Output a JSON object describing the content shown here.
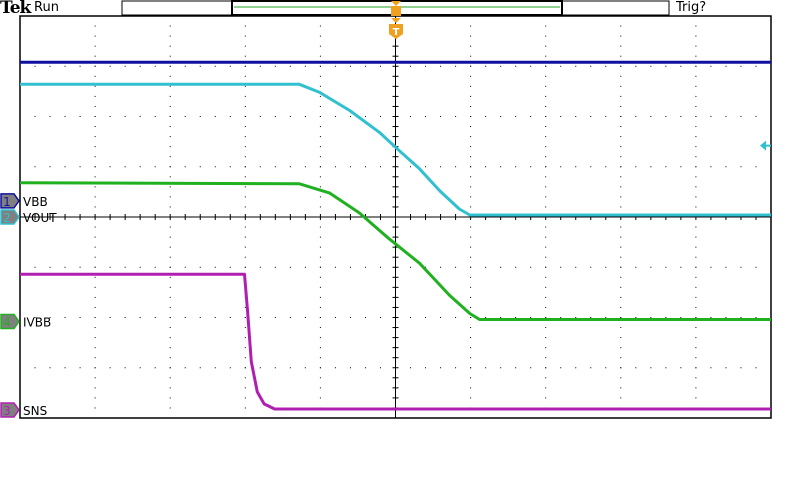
{
  "header": {
    "brand": "Tek",
    "status": "Run",
    "trigger_status": "Trig?"
  },
  "colors": {
    "ch1": "#1010a0",
    "ch2": "#30c0d0",
    "ch3": "#b020b0",
    "ch4": "#20b020",
    "trigger": "#f0a020",
    "grid": "#000000"
  },
  "chart_data": {
    "type": "line",
    "title": "",
    "xlabel": "",
    "ylabel": "",
    "xlim": [
      -5,
      5
    ],
    "ylim": [
      -4,
      4
    ],
    "units": "divisions",
    "grid": true,
    "x_divisions": 10,
    "y_divisions": 8,
    "trigger_position": 0,
    "trigger_level_ch2": 1.42,
    "series": [
      {
        "name": "VBB",
        "channel": "1",
        "color": "#1010a0",
        "ground": 0.32,
        "points": [
          [
            -5,
            3.08
          ],
          [
            5,
            3.08
          ]
        ]
      },
      {
        "name": "VOUT",
        "channel": "2",
        "color": "#30c0d0",
        "ground": 0.0,
        "points": [
          [
            -5,
            2.64
          ],
          [
            -1.28,
            2.64
          ],
          [
            -1.01,
            2.48
          ],
          [
            -0.61,
            2.12
          ],
          [
            -0.21,
            1.68
          ],
          [
            0.05,
            1.32
          ],
          [
            0.32,
            0.96
          ],
          [
            0.59,
            0.52
          ],
          [
            0.85,
            0.16
          ],
          [
            0.99,
            0.04
          ],
          [
            5,
            0.04
          ]
        ]
      },
      {
        "name": "IVBB",
        "channel": "4",
        "color": "#20b020",
        "ground": -2.08,
        "points": [
          [
            -5,
            0.68
          ],
          [
            -1.28,
            0.66
          ],
          [
            -0.88,
            0.48
          ],
          [
            -0.48,
            0.08
          ],
          [
            -0.08,
            -0.44
          ],
          [
            0.32,
            -0.92
          ],
          [
            0.72,
            -1.56
          ],
          [
            0.99,
            -1.92
          ],
          [
            1.12,
            -2.04
          ],
          [
            5,
            -2.04
          ]
        ]
      },
      {
        "name": "SNS",
        "channel": "3",
        "color": "#b020b0",
        "ground": -3.84,
        "points": [
          [
            -5,
            -1.14
          ],
          [
            -2.01,
            -1.14
          ],
          [
            -1.97,
            -1.88
          ],
          [
            -1.92,
            -2.88
          ],
          [
            -1.84,
            -3.48
          ],
          [
            -1.75,
            -3.72
          ],
          [
            -1.61,
            -3.82
          ],
          [
            5,
            -3.82
          ]
        ]
      }
    ]
  }
}
